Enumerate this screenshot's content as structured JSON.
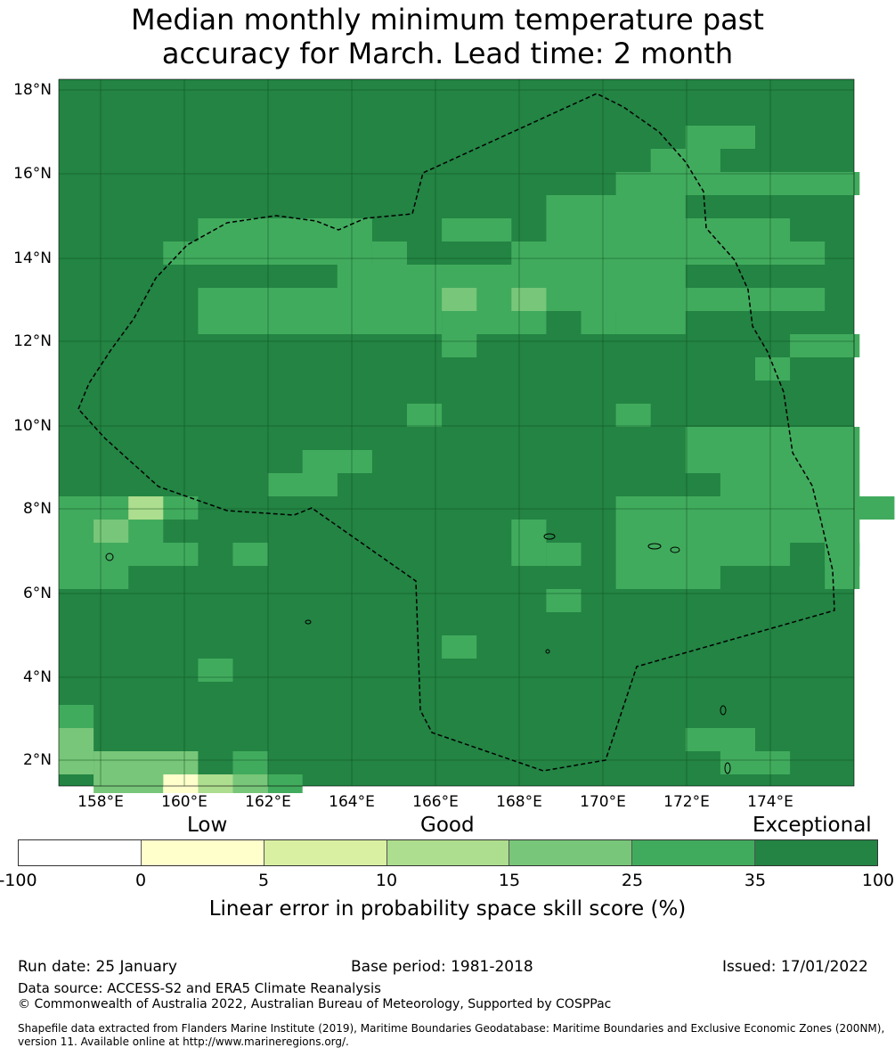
{
  "title": {
    "line1": "Median monthly minimum temperature past",
    "line2": "accuracy for March. Lead time: 2 month"
  },
  "map": {
    "lat_ticks": [
      "18°N",
      "16°N",
      "14°N",
      "12°N",
      "10°N",
      "8°N",
      "6°N",
      "4°N",
      "2°N"
    ],
    "lon_ticks": [
      "158°E",
      "160°E",
      "162°E",
      "164°E",
      "166°E",
      "168°E",
      "170°E",
      "172°E",
      "174°E"
    ],
    "colors": {
      "exceptional": "#238443",
      "c25_35": "#41ab5d",
      "c15_25": "#78c679",
      "c10_15": "#addd8e",
      "c5_10": "#d9f0a3",
      "c0_5": "#ffffcc",
      "below0": "#ffffff"
    },
    "boundary_style": "dashed black line",
    "grid": true
  },
  "colorbar": {
    "headings": {
      "low": "Low",
      "good": "Good",
      "exceptional": "Exceptional"
    },
    "ticks": [
      "-100",
      "0",
      "5",
      "10",
      "15",
      "25",
      "35",
      "100"
    ],
    "colors": [
      "#ffffff",
      "#ffffcc",
      "#d9f0a3",
      "#addd8e",
      "#78c679",
      "#41ab5d",
      "#238443"
    ],
    "label": "Linear error in probability space skill score (%)"
  },
  "footer": {
    "run_date": "Run date: 25 January",
    "base_period": "Base period: 1981-2018",
    "issued": "Issued: 17/01/2022",
    "data_source": "Data source: ACCESS-S2 and ERA5 Climate Reanalysis",
    "copyright": "© Commonwealth of Australia 2022, Australian Bureau of Meteorology, Supported by COSPPac",
    "shapefile": "Shapefile data extracted from Flanders Marine Institute (2019), Maritime Boundaries Geodatabase: Maritime Boundaries and Exclusive Economic Zones (200NM), version 11. Available online at http://www.marineregions.org/."
  }
}
